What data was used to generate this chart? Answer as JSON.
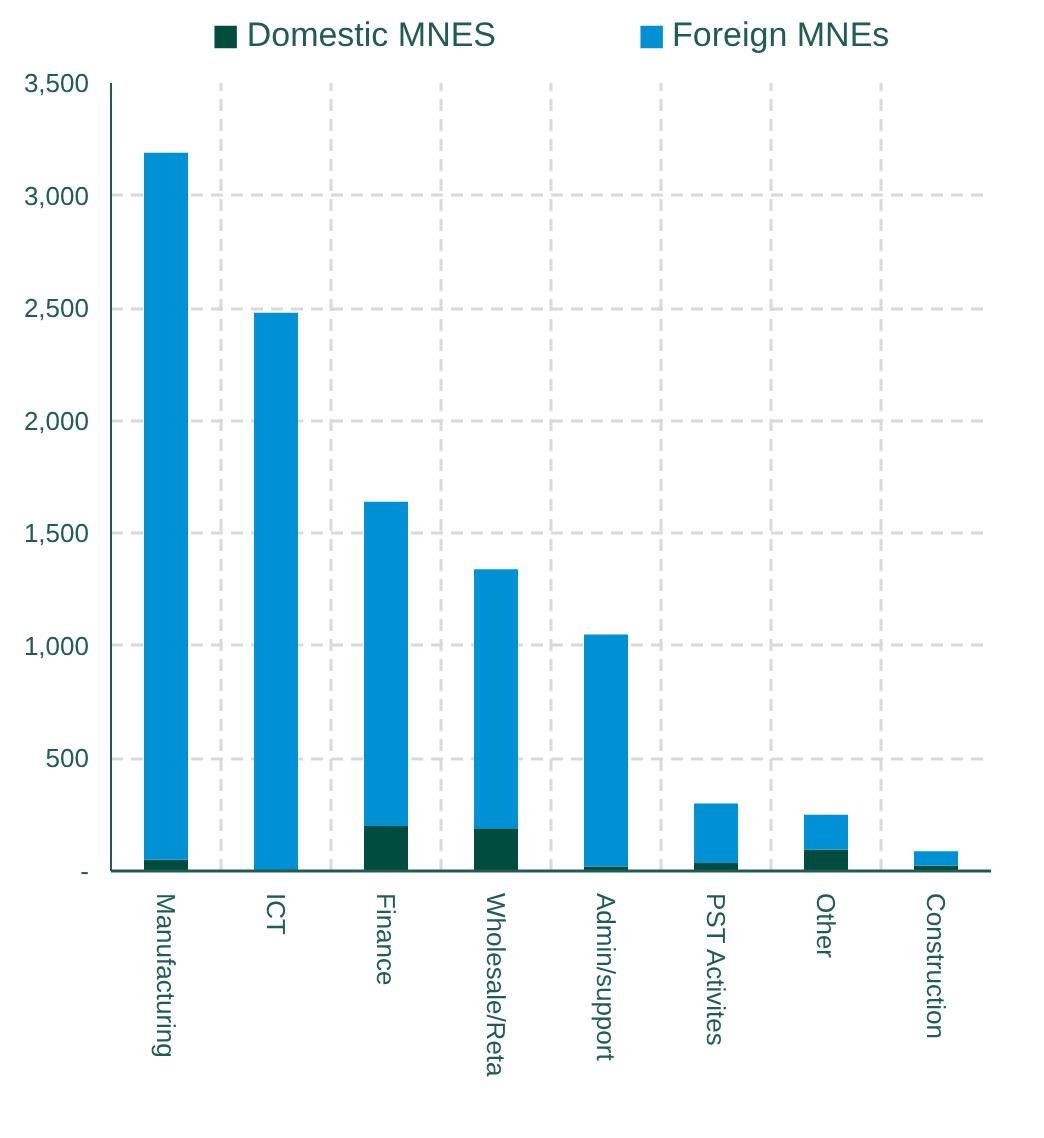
{
  "chart_data": {
    "type": "bar",
    "stacked": true,
    "categories": [
      "Manufacturing",
      "ICT",
      "Finance",
      "Wholesale/Reta",
      "Admin/support",
      "PST Activites",
      "Other",
      "Construction"
    ],
    "series": [
      {
        "name": "Domestic MNES",
        "color": "#004d40",
        "values": [
          50,
          0,
          200,
          190,
          20,
          35,
          95,
          23
        ]
      },
      {
        "name": "Foreign MNEs",
        "color": "#0091d5",
        "values": [
          3140,
          2480,
          1440,
          1150,
          1030,
          265,
          155,
          65
        ]
      }
    ],
    "ylim": [
      0,
      3500
    ],
    "yticks": [
      {
        "value": 0,
        "label": "-"
      },
      {
        "value": 500,
        "label": "500"
      },
      {
        "value": 1000,
        "label": "1,000"
      },
      {
        "value": 1500,
        "label": "1,500"
      },
      {
        "value": 2000,
        "label": "2,000"
      },
      {
        "value": 2500,
        "label": "2,500"
      },
      {
        "value": 3000,
        "label": "3,000"
      },
      {
        "value": 3500,
        "label": "3,500"
      }
    ],
    "grid": true,
    "legend": "top"
  }
}
